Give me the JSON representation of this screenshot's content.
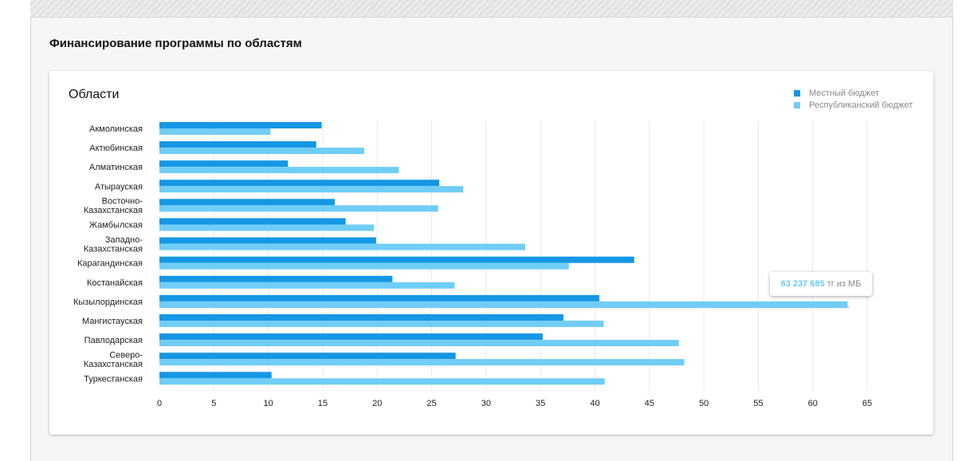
{
  "section_title": "Финансирование программы по областям",
  "card_title": "Области",
  "colors": {
    "local": "#1597e5",
    "republican": "#70cdf6",
    "grid": "#e8e8e8"
  },
  "tooltip": {
    "value": "63 237 685",
    "suffix": " тг из МБ"
  },
  "chart_data": {
    "type": "bar",
    "orientation": "horizontal",
    "title": "",
    "xlabel": "",
    "ylabel": "Области",
    "xlim": [
      0,
      65
    ],
    "xticks": [
      0,
      5,
      10,
      15,
      20,
      25,
      30,
      35,
      40,
      45,
      50,
      55,
      60,
      65
    ],
    "grid": true,
    "legend_position": "top-right",
    "categories": [
      [
        "Акмолинская"
      ],
      [
        "Актюбинская"
      ],
      [
        "Алматинская"
      ],
      [
        "Атырауская"
      ],
      [
        "Восточно-",
        "Казахстанская"
      ],
      [
        "Жамбылская"
      ],
      [
        "Западно-",
        "Казахстанская"
      ],
      [
        "Карагандинская"
      ],
      [
        "Костанайская"
      ],
      [
        "Кызылординская"
      ],
      [
        "Мангистауская"
      ],
      [
        "Павлодарская"
      ],
      [
        "Северо-",
        "Казахстанская"
      ],
      [
        "Туркестанская"
      ]
    ],
    "series": [
      {
        "name": "Местный бюджет",
        "color": "#1597e5",
        "values": [
          14.9,
          14.4,
          11.8,
          25.7,
          16.1,
          17.1,
          19.9,
          43.6,
          21.4,
          40.4,
          37.1,
          35.2,
          27.2,
          10.3
        ]
      },
      {
        "name": "Республиканский бюджет",
        "color": "#70cdf6",
        "values": [
          10.2,
          18.8,
          22.0,
          27.9,
          25.6,
          19.7,
          33.6,
          37.6,
          27.1,
          63.2,
          40.8,
          47.7,
          48.2,
          40.9
        ]
      }
    ]
  }
}
